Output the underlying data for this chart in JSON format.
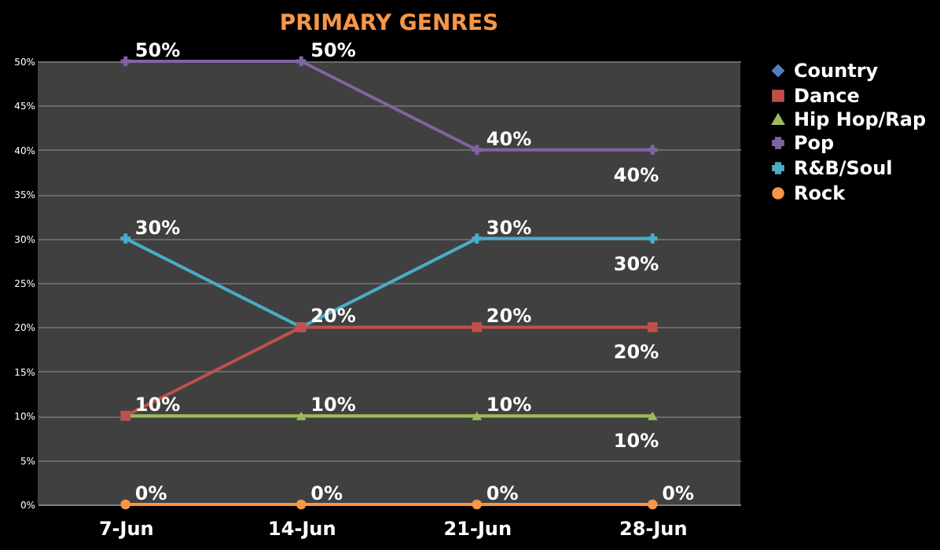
{
  "chart_data": {
    "type": "line",
    "title": "PRIMARY GENRES",
    "categories": [
      "7-Jun",
      "14-Jun",
      "21-Jun",
      "28-Jun"
    ],
    "series": [
      {
        "name": "Country",
        "color": "#4f81bd",
        "marker": "diamond",
        "values": [
          null,
          null,
          null,
          null
        ]
      },
      {
        "name": "Dance",
        "color": "#c0504d",
        "marker": "square",
        "values": [
          10,
          20,
          20,
          20
        ],
        "value_labels": [
          null,
          null,
          "20%",
          "20%"
        ]
      },
      {
        "name": "Hip Hop/Rap",
        "color": "#9bbb59",
        "marker": "triangle",
        "values": [
          10,
          10,
          10,
          10
        ],
        "value_labels": [
          "10%",
          "10%",
          "10%",
          "10%"
        ]
      },
      {
        "name": "Pop",
        "color": "#8064a2",
        "marker": "cross",
        "values": [
          50,
          50,
          40,
          40
        ],
        "value_labels": [
          "50%",
          "50%",
          "40%",
          "40%"
        ]
      },
      {
        "name": "R&B/Soul",
        "color": "#4bacc6",
        "marker": "cross",
        "values": [
          30,
          20,
          30,
          30
        ],
        "value_labels": [
          "30%",
          "20%",
          "30%",
          "30%"
        ]
      },
      {
        "name": "Rock",
        "color": "#f79646",
        "marker": "circle",
        "values": [
          0,
          0,
          0,
          0
        ],
        "value_labels": [
          "0%",
          "0%",
          "0%",
          "0%"
        ]
      }
    ],
    "ylim": [
      0,
      50
    ],
    "yticks": [
      {
        "value": 0,
        "label": "0%"
      },
      {
        "value": 5,
        "label": "5%"
      },
      {
        "value": 10,
        "label": "10%"
      },
      {
        "value": 15,
        "label": "15%"
      },
      {
        "value": 20,
        "label": "20%"
      },
      {
        "value": 25,
        "label": "25%"
      },
      {
        "value": 30,
        "label": "30%"
      },
      {
        "value": 35,
        "label": "35%"
      },
      {
        "value": 40,
        "label": "40%"
      },
      {
        "value": 45,
        "label": "45%"
      },
      {
        "value": 50,
        "label": "50%"
      }
    ],
    "grid": "y",
    "legend": "right",
    "line_style": "solid"
  }
}
